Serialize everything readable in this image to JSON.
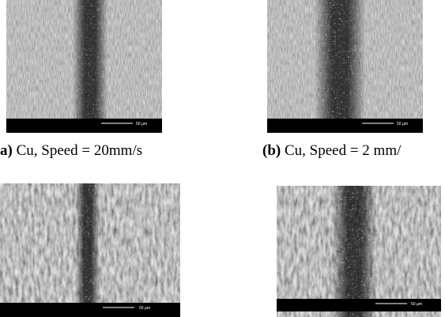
{
  "figure": {
    "panels": [
      {
        "label": "a)",
        "caption": "Cu, Speed = 20mm/s",
        "scale_bar": "50 µm"
      },
      {
        "label": "(b)",
        "caption": "Cu, Speed = 2 mm/",
        "scale_bar": "50 µm"
      },
      {
        "scale_bar": "50 µm"
      },
      {
        "scale_bar": "50 µm"
      }
    ]
  }
}
